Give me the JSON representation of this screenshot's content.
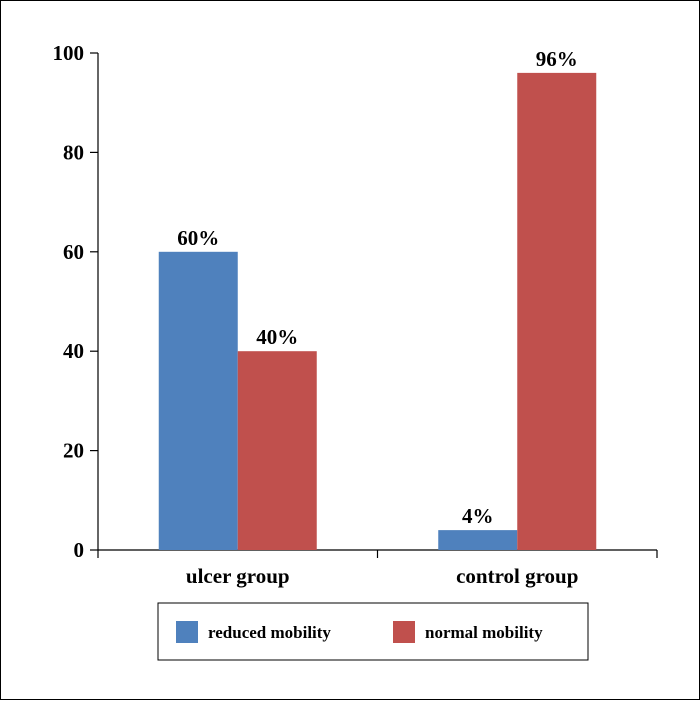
{
  "chart_data": {
    "type": "bar",
    "categories": [
      "ulcer group",
      "control group"
    ],
    "series": [
      {
        "name": "reduced mobility",
        "values": [
          60,
          4
        ],
        "labels": [
          "60%",
          "4%"
        ],
        "color": "#4f81bd"
      },
      {
        "name": "normal mobility",
        "values": [
          40,
          96
        ],
        "labels": [
          "40%",
          "96%"
        ],
        "color": "#c0504d"
      }
    ],
    "ylim": [
      0,
      100
    ],
    "yticks": [
      0,
      20,
      40,
      60,
      80,
      100
    ],
    "grid": false,
    "legend": "bottom"
  }
}
